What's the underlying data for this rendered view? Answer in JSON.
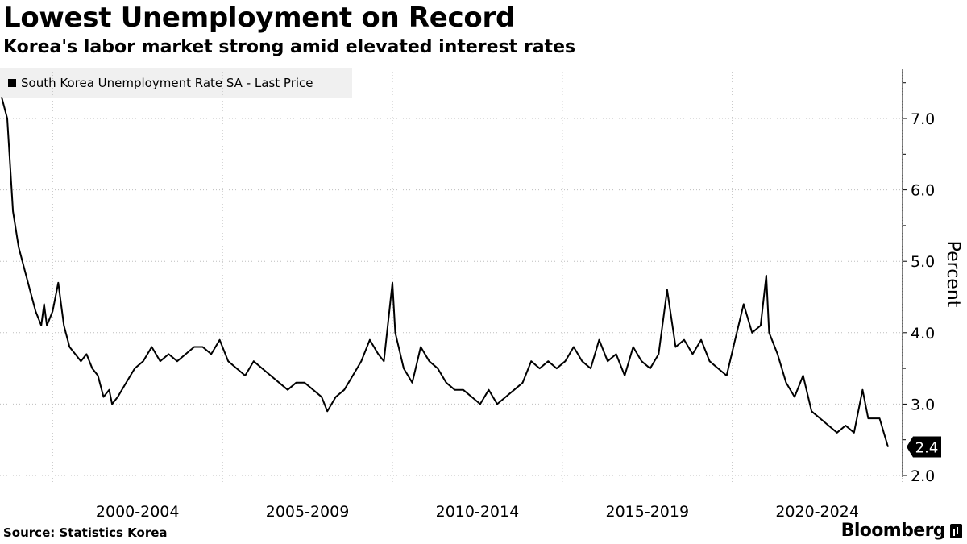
{
  "header": {
    "title": "Lowest Unemployment on Record",
    "subtitle": "Korea's labor market strong amid elevated interest rates"
  },
  "footer": {
    "source": "Source: Statistics Korea",
    "brand": "Bloomberg"
  },
  "colors": {
    "line": "#000000",
    "grid": "#bdbdbd",
    "legend_bg": "#f0f0f0"
  },
  "chart_data": {
    "type": "line",
    "title": "Lowest Unemployment on Record",
    "subtitle": "Korea's labor market strong amid elevated interest rates",
    "ylabel": "Percent",
    "xlabel": "",
    "ylim": [
      2.0,
      7.7
    ],
    "y_ticks": [
      "7.0",
      "6.0",
      "5.0",
      "4.0",
      "3.0",
      "2.0"
    ],
    "x_ticks": [
      "2000-2004",
      "2005-2009",
      "2010-2014",
      "2015-2019",
      "2020-2024"
    ],
    "x_range": [
      "1998-07",
      "2024-08"
    ],
    "grid": true,
    "legend_position": "top-left",
    "last_value_label": "2.4",
    "series": [
      {
        "name": "South Korea Unemployment Rate SA - Last Price",
        "points": [
          [
            "1998-07",
            7.3
          ],
          [
            "1998-09",
            7.0
          ],
          [
            "1998-11",
            5.7
          ],
          [
            "1999-01",
            5.2
          ],
          [
            "1999-03",
            4.9
          ],
          [
            "1999-05",
            4.6
          ],
          [
            "1999-07",
            4.3
          ],
          [
            "1999-09",
            4.1
          ],
          [
            "1999-10",
            4.4
          ],
          [
            "1999-11",
            4.1
          ],
          [
            "2000-01",
            4.3
          ],
          [
            "2000-03",
            4.7
          ],
          [
            "2000-05",
            4.1
          ],
          [
            "2000-07",
            3.8
          ],
          [
            "2000-09",
            3.7
          ],
          [
            "2000-11",
            3.6
          ],
          [
            "2001-01",
            3.7
          ],
          [
            "2001-03",
            3.5
          ],
          [
            "2001-05",
            3.4
          ],
          [
            "2001-07",
            3.1
          ],
          [
            "2001-09",
            3.2
          ],
          [
            "2001-10",
            3.0
          ],
          [
            "2001-12",
            3.1
          ],
          [
            "2002-03",
            3.3
          ],
          [
            "2002-06",
            3.5
          ],
          [
            "2002-09",
            3.6
          ],
          [
            "2002-12",
            3.8
          ],
          [
            "2003-03",
            3.6
          ],
          [
            "2003-06",
            3.7
          ],
          [
            "2003-09",
            3.6
          ],
          [
            "2003-12",
            3.7
          ],
          [
            "2004-03",
            3.8
          ],
          [
            "2004-06",
            3.8
          ],
          [
            "2004-09",
            3.7
          ],
          [
            "2004-12",
            3.9
          ],
          [
            "2005-03",
            3.6
          ],
          [
            "2005-06",
            3.5
          ],
          [
            "2005-09",
            3.4
          ],
          [
            "2005-12",
            3.6
          ],
          [
            "2006-03",
            3.5
          ],
          [
            "2006-06",
            3.4
          ],
          [
            "2006-09",
            3.3
          ],
          [
            "2006-12",
            3.2
          ],
          [
            "2007-03",
            3.3
          ],
          [
            "2007-06",
            3.3
          ],
          [
            "2007-09",
            3.2
          ],
          [
            "2007-12",
            3.1
          ],
          [
            "2008-02",
            2.9
          ],
          [
            "2008-05",
            3.1
          ],
          [
            "2008-08",
            3.2
          ],
          [
            "2008-11",
            3.4
          ],
          [
            "2009-02",
            3.6
          ],
          [
            "2009-05",
            3.9
          ],
          [
            "2009-08",
            3.7
          ],
          [
            "2009-10",
            3.6
          ],
          [
            "2010-01",
            4.7
          ],
          [
            "2010-02",
            4.0
          ],
          [
            "2010-05",
            3.5
          ],
          [
            "2010-08",
            3.3
          ],
          [
            "2010-11",
            3.8
          ],
          [
            "2011-02",
            3.6
          ],
          [
            "2011-05",
            3.5
          ],
          [
            "2011-08",
            3.3
          ],
          [
            "2011-11",
            3.2
          ],
          [
            "2012-02",
            3.2
          ],
          [
            "2012-05",
            3.1
          ],
          [
            "2012-08",
            3.0
          ],
          [
            "2012-11",
            3.2
          ],
          [
            "2013-02",
            3.0
          ],
          [
            "2013-05",
            3.1
          ],
          [
            "2013-08",
            3.2
          ],
          [
            "2013-11",
            3.3
          ],
          [
            "2014-02",
            3.6
          ],
          [
            "2014-05",
            3.5
          ],
          [
            "2014-08",
            3.6
          ],
          [
            "2014-11",
            3.5
          ],
          [
            "2015-02",
            3.6
          ],
          [
            "2015-05",
            3.8
          ],
          [
            "2015-08",
            3.6
          ],
          [
            "2015-11",
            3.5
          ],
          [
            "2016-02",
            3.9
          ],
          [
            "2016-05",
            3.6
          ],
          [
            "2016-08",
            3.7
          ],
          [
            "2016-11",
            3.4
          ],
          [
            "2017-02",
            3.8
          ],
          [
            "2017-05",
            3.6
          ],
          [
            "2017-08",
            3.5
          ],
          [
            "2017-11",
            3.7
          ],
          [
            "2018-02",
            4.6
          ],
          [
            "2018-05",
            3.8
          ],
          [
            "2018-08",
            3.9
          ],
          [
            "2018-11",
            3.7
          ],
          [
            "2019-02",
            3.9
          ],
          [
            "2019-05",
            3.6
          ],
          [
            "2019-08",
            3.5
          ],
          [
            "2019-11",
            3.4
          ],
          [
            "2020-02",
            3.9
          ],
          [
            "2020-05",
            4.4
          ],
          [
            "2020-08",
            4.0
          ],
          [
            "2020-11",
            4.1
          ],
          [
            "2021-01",
            4.8
          ],
          [
            "2021-02",
            4.0
          ],
          [
            "2021-05",
            3.7
          ],
          [
            "2021-08",
            3.3
          ],
          [
            "2021-11",
            3.1
          ],
          [
            "2022-02",
            3.4
          ],
          [
            "2022-05",
            2.9
          ],
          [
            "2022-08",
            2.8
          ],
          [
            "2022-11",
            2.7
          ],
          [
            "2023-02",
            2.6
          ],
          [
            "2023-05",
            2.7
          ],
          [
            "2023-08",
            2.6
          ],
          [
            "2023-11",
            3.2
          ],
          [
            "2024-01",
            2.8
          ],
          [
            "2024-05",
            2.8
          ],
          [
            "2024-08",
            2.4
          ]
        ]
      }
    ]
  }
}
